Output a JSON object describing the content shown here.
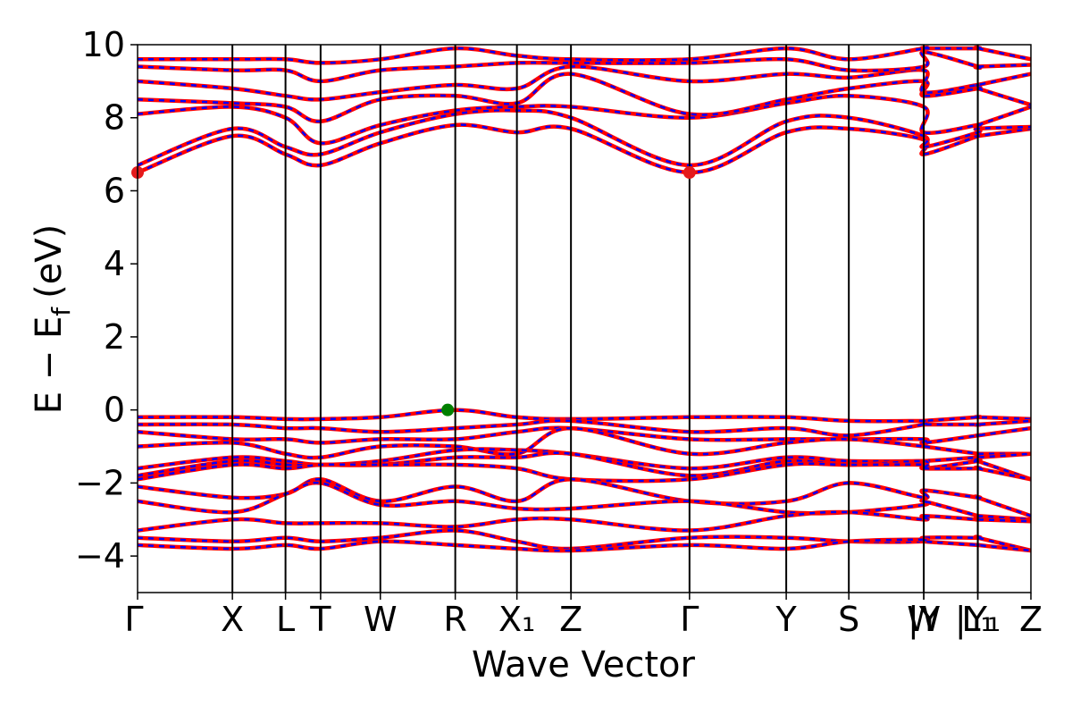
{
  "chart_data": {
    "type": "line",
    "xlabel": "Wave Vector",
    "ylabel": {
      "main": "E − E",
      "sub": "f",
      "unit": "(eV)"
    },
    "ylim": [
      -5,
      10
    ],
    "yticks": [
      -4,
      -2,
      0,
      2,
      4,
      6,
      8,
      10
    ],
    "grid": false,
    "line_styles": {
      "solid_color": "#ff0000",
      "dashed_color": "#0000ff"
    },
    "kpath": {
      "labels": [
        "Γ",
        "X",
        "L",
        "T",
        "W",
        "R",
        "X₁",
        "Z",
        "Γ",
        "Y",
        "S",
        "W",
        "|Y",
        "L₁",
        "|Y₁",
        "Z"
      ],
      "positions": [
        0.0,
        1.0,
        1.56,
        1.93,
        2.56,
        3.35,
        4.0,
        4.57,
        5.82,
        6.84,
        7.5,
        8.29,
        8.29,
        8.86,
        8.86,
        9.42
      ]
    },
    "band_edges": [
      {
        "name": "CBM",
        "x": 0.0,
        "y": 6.5,
        "color": "#e41a1c"
      },
      {
        "name": "CBM",
        "x": 5.82,
        "y": 6.5,
        "color": "#e41a1c"
      },
      {
        "name": "VBM",
        "x": 3.27,
        "y": 0.0,
        "color": "#007f00"
      }
    ],
    "series": [
      {
        "values": [
          6.5,
          7.5,
          7.0,
          6.7,
          7.3,
          7.8,
          7.6,
          7.7,
          6.5,
          7.6,
          7.7,
          7.4,
          7.0,
          7.5,
          7.5,
          7.7
        ]
      },
      {
        "values": [
          6.7,
          7.7,
          7.2,
          7.0,
          7.6,
          8.1,
          8.2,
          8.0,
          6.7,
          7.9,
          8.0,
          7.5,
          7.2,
          7.6,
          7.7,
          7.75
        ]
      },
      {
        "values": [
          8.1,
          8.3,
          8.0,
          7.3,
          7.8,
          8.2,
          8.3,
          8.3,
          8.0,
          8.4,
          8.6,
          8.3,
          7.6,
          7.8,
          7.8,
          8.3
        ]
      },
      {
        "values": [
          8.5,
          8.4,
          8.3,
          7.9,
          8.5,
          8.6,
          8.4,
          9.2,
          8.1,
          8.5,
          8.8,
          9.0,
          8.6,
          8.8,
          8.8,
          8.35
        ]
      },
      {
        "values": [
          9.0,
          8.8,
          8.6,
          8.5,
          8.7,
          8.9,
          8.8,
          9.4,
          9.0,
          9.2,
          9.1,
          9.3,
          8.7,
          8.9,
          8.9,
          9.2
        ]
      },
      {
        "values": [
          9.4,
          9.3,
          9.3,
          9.0,
          9.3,
          9.4,
          9.5,
          9.5,
          9.5,
          9.6,
          9.3,
          9.4,
          9.8,
          9.4,
          9.4,
          9.45
        ]
      },
      {
        "values": [
          9.6,
          9.6,
          9.6,
          9.5,
          9.6,
          9.9,
          9.7,
          9.6,
          9.6,
          9.9,
          9.6,
          9.9,
          9.9,
          9.9,
          9.9,
          9.6
        ]
      },
      {
        "values": [
          -0.2,
          -0.2,
          -0.25,
          -0.25,
          -0.2,
          0.0,
          -0.2,
          -0.25,
          -0.2,
          -0.2,
          -0.3,
          -0.3,
          -0.3,
          -0.2,
          -0.2,
          -0.25
        ]
      },
      {
        "values": [
          -0.4,
          -0.4,
          -0.5,
          -0.5,
          -0.6,
          -0.5,
          -0.4,
          -0.3,
          -0.6,
          -0.5,
          -0.7,
          -0.4,
          -0.4,
          -0.4,
          -0.4,
          -0.3
        ]
      },
      {
        "values": [
          -0.6,
          -0.8,
          -0.8,
          -0.9,
          -0.8,
          -0.8,
          -0.6,
          -0.5,
          -0.8,
          -0.8,
          -0.8,
          -0.8,
          -0.9,
          -0.7,
          -0.7,
          -0.5
        ]
      },
      {
        "values": [
          -1.0,
          -0.9,
          -1.2,
          -1.3,
          -1.0,
          -1.0,
          -1.2,
          -0.5,
          -1.2,
          -0.9,
          -0.8,
          -1.0,
          -1.0,
          -1.2,
          -1.2,
          -1.2
        ]
      },
      {
        "values": [
          -1.6,
          -1.3,
          -1.4,
          -1.5,
          -1.4,
          -1.1,
          -1.1,
          -1.2,
          -1.6,
          -1.3,
          -1.4,
          -1.4,
          -1.4,
          -1.3,
          -1.3,
          -1.2
        ]
      },
      {
        "values": [
          -1.8,
          -1.4,
          -1.5,
          -1.5,
          -1.5,
          -1.3,
          -1.3,
          -1.2,
          -1.8,
          -1.4,
          -1.5,
          -1.4,
          -1.6,
          -1.4,
          -1.4,
          -1.9
        ]
      },
      {
        "values": [
          -1.9,
          -1.5,
          -1.6,
          -1.5,
          -1.5,
          -1.5,
          -1.6,
          -1.9,
          -1.9,
          -1.5,
          -1.5,
          -1.5,
          -1.6,
          -1.6,
          -1.6,
          -1.9
        ]
      },
      {
        "values": [
          -2.1,
          -2.4,
          -2.3,
          -1.9,
          -2.5,
          -2.1,
          -2.5,
          -1.9,
          -2.5,
          -2.5,
          -2.0,
          -2.4,
          -2.2,
          -2.4,
          -2.4,
          -2.9
        ]
      },
      {
        "values": [
          -2.5,
          -2.8,
          -2.3,
          -2.0,
          -2.6,
          -2.5,
          -2.7,
          -2.7,
          -2.5,
          -2.8,
          -2.8,
          -2.6,
          -2.5,
          -2.9,
          -2.9,
          -3.0
        ]
      },
      {
        "values": [
          -3.3,
          -3.0,
          -3.1,
          -3.1,
          -3.1,
          -3.2,
          -3.0,
          -3.0,
          -3.3,
          -2.9,
          -2.8,
          -3.0,
          -2.9,
          -3.0,
          -3.0,
          -3.05
        ]
      },
      {
        "values": [
          -3.5,
          -3.6,
          -3.5,
          -3.6,
          -3.5,
          -3.3,
          -3.6,
          -3.8,
          -3.5,
          -3.5,
          -3.6,
          -3.6,
          -3.5,
          -3.5,
          -3.5,
          -3.85
        ]
      },
      {
        "values": [
          -3.7,
          -3.8,
          -3.7,
          -3.8,
          -3.6,
          -3.7,
          -3.8,
          -3.85,
          -3.7,
          -3.8,
          -3.6,
          -3.55,
          -3.6,
          -3.7,
          -3.7,
          -3.85
        ]
      }
    ]
  }
}
